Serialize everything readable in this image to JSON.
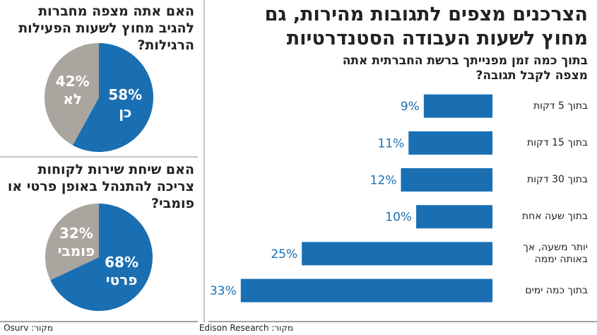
{
  "chart_data": [
    {
      "type": "bar",
      "title": "הצרכנים מצפים לתגובות מהירות, גם מחוץ לשעות העבודה הסטנדרטיות",
      "subtitle": "בתוך כמה זמן מפנייתך ברשת החברתית אתה מצפה לקבל תגובה?",
      "categories": [
        "בתוך 5 דקות",
        "בתוך 15 דקות",
        "בתוך 30 דקות",
        "בתוך שעה אחת",
        "יותר משעה, אך באותה יממה",
        "בתוך כמה ימים"
      ],
      "values": [
        9,
        11,
        12,
        10,
        25,
        33
      ],
      "value_labels": [
        "9%",
        "11%",
        "12%",
        "10%",
        "25%",
        "33%"
      ],
      "color": "#1a6fb3",
      "xlim": [
        0,
        34
      ],
      "source": "מקור: Edison Research"
    },
    {
      "type": "pie",
      "title": "האם אתה מצפה מחברות להגיב מחוץ לשעות הפעילות הרגילות?",
      "categories": [
        "כן",
        "לא"
      ],
      "values": [
        58,
        42
      ],
      "value_labels": [
        "58%",
        "42%"
      ],
      "colors": [
        "#1a6fb3",
        "#aaa59f"
      ]
    },
    {
      "type": "pie",
      "title": "האם שיחת שירות לקוחות צריכה להתנהל באופן פרטי או פומבי?",
      "categories": [
        "פרטי",
        "פומבי"
      ],
      "values": [
        68,
        32
      ],
      "value_labels": [
        "68%",
        "32%"
      ],
      "colors": [
        "#1a6fb3",
        "#aaa59f"
      ],
      "source": "מקור: Osurv"
    }
  ]
}
